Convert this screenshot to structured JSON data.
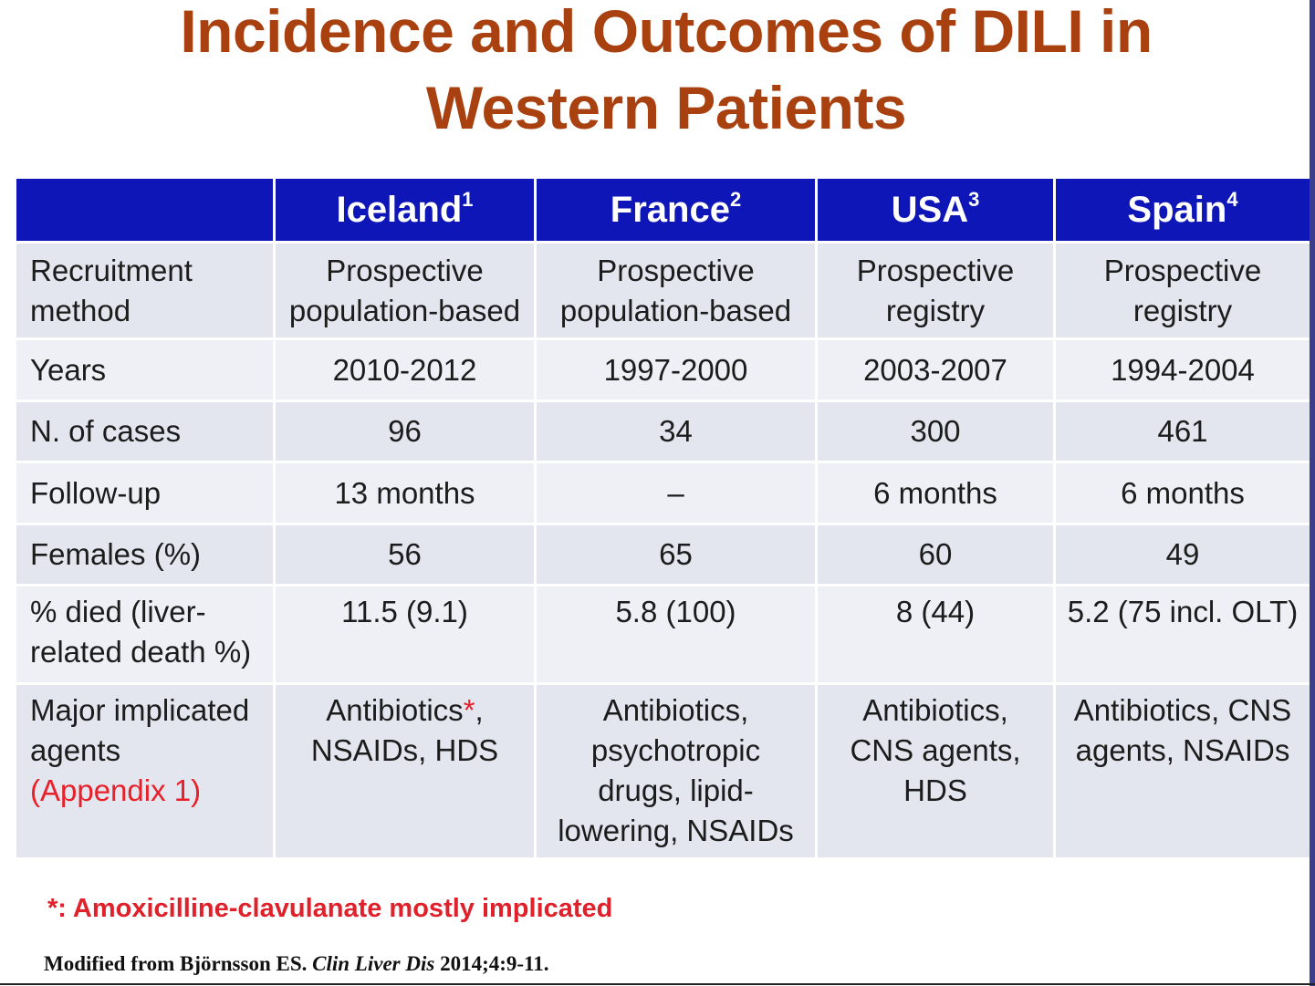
{
  "title": {
    "line1": "Incidence and Outcomes of DILI in",
    "line2": "Western Patients"
  },
  "table": {
    "columns": [
      {
        "name": "",
        "sup": ""
      },
      {
        "name": "Iceland",
        "sup": "1"
      },
      {
        "name": "France",
        "sup": "2"
      },
      {
        "name": "USA",
        "sup": "3"
      },
      {
        "name": "Spain",
        "sup": "4"
      }
    ],
    "rows": {
      "recruitment": {
        "label_line1": "Recruitment",
        "label_line2": "method",
        "iceland": [
          "Prospective",
          "population-based"
        ],
        "france": [
          "Prospective",
          "population-based"
        ],
        "usa": [
          "Prospective",
          "registry"
        ],
        "spain": [
          "Prospective",
          "registry"
        ]
      },
      "years": {
        "label": "Years",
        "values": [
          "2010-2012",
          "1997-2000",
          "2003-2007",
          "1994-2004"
        ]
      },
      "cases": {
        "label": "N. of cases",
        "values": [
          "96",
          "34",
          "300",
          "461"
        ]
      },
      "followup": {
        "label": "Follow-up",
        "values": [
          "13 months",
          "–",
          "6 months",
          "6 months"
        ]
      },
      "females": {
        "label": "Females (%)",
        "values": [
          "56",
          "65",
          "60",
          "49"
        ]
      },
      "died": {
        "label_line1": "% died (liver-",
        "label_line2": "related death %)",
        "values": [
          "11.5 (9.1)",
          "5.8 (100)",
          "8 (44)",
          "5.2 (75 incl. OLT)"
        ]
      },
      "agents": {
        "label_line1": "Major implicated",
        "label_line2": "agents",
        "label_line3": "(Appendix 1)",
        "iceland": {
          "line1": "Antibiotics",
          "star": "*",
          "line1_tail": ",",
          "line2": "NSAIDs, HDS"
        },
        "france": [
          "Antibiotics,",
          "psychotropic",
          "drugs, lipid-",
          "lowering, NSAIDs"
        ],
        "usa": [
          "Antibiotics,",
          "CNS agents,",
          "HDS"
        ],
        "spain": [
          "Antibiotics, CNS",
          "agents, NSAIDs"
        ]
      }
    }
  },
  "footnote": "*: Amoxicilline-clavulanate mostly implicated",
  "source": {
    "prefix": "Modified from Björnsson ES. ",
    "journal": "Clin Liver Dis",
    "suffix": " 2014;4:9-11."
  },
  "colors": {
    "title": "#a8410f",
    "header_bg": "#0f16b8",
    "accent_red": "#e8202a",
    "row_bg": "#e3e6ee"
  }
}
